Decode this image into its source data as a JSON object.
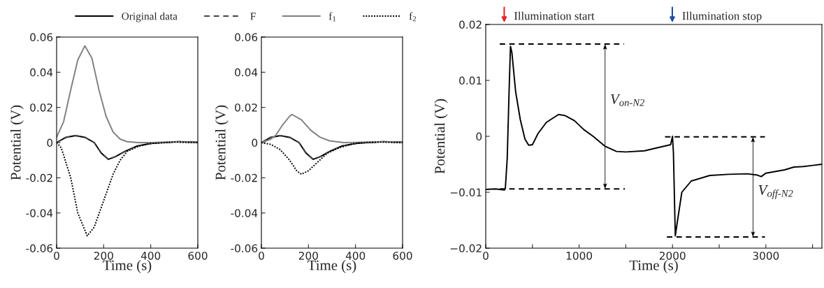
{
  "chart_data": [
    {
      "type": "line",
      "xlabel": "Time (s)",
      "ylabel": "Potential (V)",
      "xlim": [
        0,
        600
      ],
      "ylim": [
        -0.06,
        0.06
      ],
      "xticks": [
        0,
        200,
        400,
        600
      ],
      "yticks": [
        -0.06,
        -0.04,
        -0.02,
        0,
        0.02,
        0.04,
        0.06
      ],
      "grid": false,
      "legend": "top",
      "x": [
        0,
        40,
        80,
        120,
        160,
        190,
        220,
        250,
        290,
        340,
        400,
        450,
        520,
        600
      ],
      "series": [
        {
          "name": "Original data",
          "color": "#000000",
          "line_style": "solid",
          "values": [
            0,
            0.003,
            0.004,
            0.003,
            0,
            -0.006,
            -0.0095,
            -0.008,
            -0.005,
            -0.002,
            -0.0005,
            0,
            0.0005,
            0.0002
          ]
        },
        {
          "name": "F",
          "color": "#444444",
          "line_style": "dashed",
          "values": [
            0,
            0.003,
            0.004,
            0.003,
            0,
            -0.006,
            -0.0095,
            -0.008,
            -0.005,
            -0.002,
            -0.0005,
            0,
            0.0005,
            0.0002
          ]
        },
        {
          "name": "f$_{1}$",
          "color": "#808080",
          "line_style": "solid",
          "x": [
            0,
            30,
            60,
            90,
            120,
            150,
            180,
            210,
            240,
            270,
            300,
            350,
            400,
            500,
            600
          ],
          "values": [
            0.003,
            0.012,
            0.03,
            0.047,
            0.055,
            0.048,
            0.03,
            0.015,
            0.006,
            0.002,
            0.0005,
            0,
            0,
            0.0005,
            0
          ]
        },
        {
          "name": "f$_{2}$",
          "color": "#000000",
          "line_style": "dotted",
          "x": [
            0,
            20,
            60,
            90,
            130,
            160,
            200,
            240,
            270,
            300,
            350,
            400,
            500,
            600
          ],
          "values": [
            0,
            -0.003,
            -0.02,
            -0.04,
            -0.053,
            -0.048,
            -0.033,
            -0.018,
            -0.01,
            -0.005,
            -0.002,
            -0.0005,
            0.0003,
            0
          ]
        }
      ]
    },
    {
      "type": "line",
      "xlabel": "Time (s)",
      "ylabel": "Potential (V)",
      "xlim": [
        0,
        600
      ],
      "ylim": [
        -0.06,
        0.06
      ],
      "xticks": [
        0,
        200,
        400,
        600
      ],
      "yticks": [
        -0.06,
        -0.04,
        -0.02,
        0,
        0.02,
        0.04,
        0.06
      ],
      "grid": false,
      "x": [
        0,
        40,
        80,
        120,
        160,
        190,
        220,
        250,
        290,
        340,
        400,
        450,
        520,
        600
      ],
      "series": [
        {
          "color": "#000000",
          "line_style": "solid",
          "values": [
            0,
            0.003,
            0.004,
            0.003,
            0,
            -0.006,
            -0.0095,
            -0.008,
            -0.005,
            -0.002,
            -0.0005,
            0,
            0.0005,
            0.0002
          ]
        },
        {
          "color": "#444444",
          "line_style": "dashed",
          "values": [
            0,
            0.003,
            0.004,
            0.003,
            0,
            -0.006,
            -0.0095,
            -0.008,
            -0.005,
            -0.002,
            -0.0005,
            0,
            0.0005,
            0.0002
          ]
        },
        {
          "color": "#808080",
          "line_style": "solid",
          "x": [
            0,
            40,
            60,
            90,
            120,
            130,
            170,
            210,
            250,
            290,
            350,
            520,
            600
          ],
          "values": [
            0,
            0.002,
            0.004,
            0.01,
            0.015,
            0.016,
            0.013,
            0.007,
            0.003,
            0.001,
            0,
            0.0005,
            0
          ]
        },
        {
          "color": "#000000",
          "line_style": "dotted",
          "x": [
            0,
            40,
            80,
            120,
            150,
            170,
            200,
            240,
            280,
            330,
            380,
            420,
            500,
            600
          ],
          "values": [
            0,
            -0.001,
            -0.004,
            -0.01,
            -0.016,
            -0.018,
            -0.016,
            -0.011,
            -0.006,
            -0.003,
            -0.001,
            0,
            0.0003,
            0
          ]
        }
      ]
    },
    {
      "type": "line",
      "xlabel": "Time (s)",
      "ylabel": "Potential (V)",
      "xlim": [
        0,
        3600
      ],
      "ylim": [
        -0.02,
        0.02
      ],
      "xticks": [
        0,
        {
          "value": 500,
          "label": null
        },
        1000,
        {
          "value": 1500,
          "label": null
        },
        2000,
        {
          "value": 2500,
          "label": null
        },
        3000,
        {
          "value": 3500,
          "label": null
        }
      ],
      "yticks": [
        {
          "value": -0.02,
          "label": "−0.02"
        },
        {
          "value": -0.01,
          "label": "−0.01"
        },
        0,
        0.01,
        0.02
      ],
      "grid": false,
      "series": [
        {
          "color": "#000000",
          "line_style": "solid",
          "x": [
            0,
            100,
            200,
            210,
            230,
            250,
            265,
            280,
            320,
            370,
            420,
            460,
            500,
            560,
            650,
            780,
            850,
            950,
            1050,
            1150,
            1280,
            1400,
            1500,
            1700,
            1850,
            1980,
            2000,
            2010,
            2030,
            2050,
            2100,
            2200,
            2400,
            2600,
            2800,
            2900,
            2950,
            3000,
            3200,
            3300,
            3400,
            3500,
            3600
          ],
          "values": [
            -0.0095,
            -0.0094,
            -0.0096,
            -0.0093,
            -0.004,
            0.008,
            0.0161,
            0.015,
            0.008,
            0.003,
            -0.0005,
            -0.0016,
            -0.0015,
            0.0005,
            0.0025,
            0.0039,
            0.0037,
            0.0028,
            0.0012,
            0,
            -0.0018,
            -0.0027,
            -0.0028,
            -0.0026,
            -0.002,
            -0.0015,
            0,
            -0.003,
            -0.0178,
            -0.0155,
            -0.01,
            -0.008,
            -0.007,
            -0.0068,
            -0.0067,
            -0.0069,
            -0.0072,
            -0.0066,
            -0.006,
            -0.0055,
            -0.0054,
            -0.0052,
            -0.005
          ]
        },
        {
          "color": "#000000",
          "line_style": "dashed",
          "x": [
            150,
            1480
          ],
          "values": [
            0.0165,
            0.0165
          ]
        },
        {
          "color": "#000000",
          "line_style": "dashed",
          "x": [
            150,
            1490
          ],
          "values": [
            -0.0094,
            -0.0094
          ]
        },
        {
          "color": "#000000",
          "line_style": "dashed",
          "x": [
            1920,
            2990
          ],
          "values": [
            -0.0001,
            -0.0001
          ]
        },
        {
          "color": "#000000",
          "line_style": "dashed",
          "x": [
            1940,
            2990
          ],
          "values": [
            -0.018,
            -0.018
          ]
        }
      ],
      "annotations": [
        "V$_{on‐N2}$",
        "V$_{off‐N2}$",
        "Illumination start",
        "Illumination stop"
      ]
    }
  ]
}
